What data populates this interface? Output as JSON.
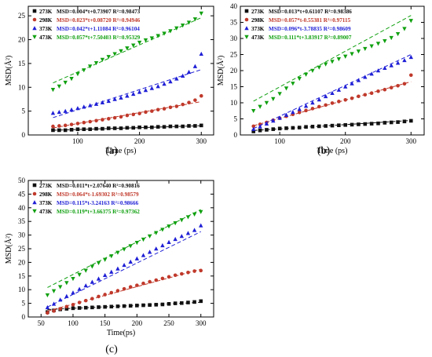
{
  "figure": {
    "colors": {
      "273K": "#111111",
      "298K": "#c0392b",
      "373K": "#1f1fd6",
      "473K": "#10a010"
    },
    "panels": [
      {
        "panel_label": "(a)",
        "xlabel": "Time (ps)",
        "ylabel": "MSD(Å²)"
      },
      {
        "panel_label": "(b)",
        "xlabel": "Time (ps)",
        "ylabel": "MSD(Å²)"
      },
      {
        "panel_label": "(c)",
        "xlabel": "Time(ps)",
        "ylabel": "MSD(Å²)"
      }
    ]
  },
  "chart_data": [
    {
      "type": "scatter",
      "title": "(a)",
      "xlabel": "Time (ps)",
      "ylabel": "MSD(Å²)",
      "xlim": [
        20,
        320
      ],
      "ylim": [
        0,
        27
      ],
      "xticks": [
        100,
        200,
        300
      ],
      "yticks": [
        0,
        5,
        10,
        15,
        20,
        25
      ],
      "grid": false,
      "legend_position": "top-left",
      "series": [
        {
          "name": "273K",
          "fit": "MSD=0.004*t+0.73907 R²=0.98473",
          "slope": 0.004,
          "intercept": 0.73907,
          "color": "#111111",
          "marker": "square",
          "x": [
            60,
            70,
            80,
            90,
            100,
            110,
            120,
            130,
            140,
            150,
            160,
            170,
            180,
            190,
            200,
            210,
            220,
            230,
            240,
            250,
            260,
            270,
            280,
            290,
            300
          ],
          "y": [
            1.0,
            1.0,
            1.0,
            1.1,
            1.2,
            1.2,
            1.2,
            1.3,
            1.3,
            1.4,
            1.4,
            1.4,
            1.5,
            1.5,
            1.6,
            1.6,
            1.6,
            1.7,
            1.7,
            1.8,
            1.8,
            1.8,
            1.9,
            1.9,
            2.0
          ]
        },
        {
          "name": "298K",
          "fit": "MSD=0.023*t+0.08720 R²=0.94946",
          "slope": 0.023,
          "intercept": 0.0872,
          "color": "#c0392b",
          "marker": "circle",
          "x": [
            60,
            70,
            80,
            90,
            100,
            110,
            120,
            130,
            140,
            150,
            160,
            170,
            180,
            190,
            200,
            210,
            220,
            230,
            240,
            250,
            260,
            270,
            280,
            290,
            300
          ],
          "y": [
            1.8,
            1.9,
            2.0,
            2.2,
            2.4,
            2.6,
            2.8,
            3.0,
            3.2,
            3.4,
            3.6,
            3.8,
            4.1,
            4.3,
            4.5,
            4.8,
            5.0,
            5.3,
            5.5,
            5.8,
            6.0,
            6.4,
            6.8,
            7.3,
            8.2
          ]
        },
        {
          "name": "373K",
          "fit": "MSD=0.042*t+1.11084 R²=0.96104",
          "slope": 0.042,
          "intercept": 1.11084,
          "color": "#1f1fd6",
          "marker": "triangle",
          "x": [
            60,
            70,
            80,
            90,
            100,
            110,
            120,
            130,
            140,
            150,
            160,
            170,
            180,
            190,
            200,
            210,
            220,
            230,
            240,
            250,
            260,
            270,
            280,
            290,
            300
          ],
          "y": [
            4.6,
            4.8,
            5.0,
            5.3,
            5.6,
            5.9,
            6.2,
            6.5,
            6.8,
            7.1,
            7.5,
            7.8,
            8.2,
            8.6,
            9.0,
            9.4,
            9.8,
            10.2,
            10.7,
            11.2,
            11.8,
            12.4,
            13.2,
            14.4,
            17.0
          ]
        },
        {
          "name": "473K",
          "fit": "MSD=0.057*t+7.50403 R²=0.95329",
          "slope": 0.057,
          "intercept": 7.50403,
          "color": "#10a010",
          "marker": "inv-triangle",
          "x": [
            60,
            70,
            80,
            90,
            100,
            110,
            120,
            130,
            140,
            150,
            160,
            170,
            180,
            190,
            200,
            210,
            220,
            230,
            240,
            250,
            260,
            270,
            280,
            290,
            300
          ],
          "y": [
            9.5,
            10.2,
            11.0,
            11.8,
            12.8,
            13.6,
            14.4,
            15.1,
            15.8,
            16.4,
            17.0,
            17.6,
            18.2,
            18.8,
            19.4,
            19.9,
            20.3,
            20.8,
            21.3,
            21.8,
            22.4,
            23.0,
            23.6,
            24.3,
            25.5
          ]
        }
      ]
    },
    {
      "type": "scatter",
      "title": "(b)",
      "xlabel": "Time (ps)",
      "ylabel": "MSD(Å²)",
      "xlim": [
        40,
        320
      ],
      "ylim": [
        0,
        40
      ],
      "xticks": [
        100,
        200,
        300
      ],
      "yticks": [
        0,
        5,
        10,
        15,
        20,
        25,
        30,
        35,
        40
      ],
      "grid": false,
      "legend_position": "top-left",
      "series": [
        {
          "name": "273K",
          "fit": "MSD=0.013*t+0.61107 R²=0.98386",
          "slope": 0.013,
          "intercept": 0.61107,
          "color": "#111111",
          "marker": "square",
          "x": [
            60,
            70,
            80,
            90,
            100,
            110,
            120,
            130,
            140,
            150,
            160,
            170,
            180,
            190,
            200,
            210,
            220,
            230,
            240,
            250,
            260,
            270,
            280,
            290,
            300
          ],
          "y": [
            1.1,
            1.4,
            1.6,
            1.8,
            2.0,
            2.1,
            2.2,
            2.3,
            2.5,
            2.6,
            2.7,
            2.8,
            2.9,
            3.0,
            3.1,
            3.2,
            3.3,
            3.4,
            3.5,
            3.6,
            3.8,
            3.9,
            4.0,
            4.2,
            4.4
          ]
        },
        {
          "name": "298K",
          "fit": "MSD=0.057*t-0.55381 R²=0.97115",
          "slope": 0.057,
          "intercept": -0.55381,
          "color": "#c0392b",
          "marker": "circle",
          "x": [
            60,
            70,
            80,
            90,
            100,
            110,
            120,
            130,
            140,
            150,
            160,
            170,
            180,
            190,
            200,
            210,
            220,
            230,
            240,
            250,
            260,
            270,
            280,
            290,
            300
          ],
          "y": [
            2.7,
            3.3,
            3.9,
            4.6,
            5.2,
            5.8,
            6.4,
            7.0,
            7.6,
            8.2,
            8.8,
            9.3,
            9.9,
            10.4,
            10.9,
            11.4,
            12.0,
            12.5,
            13.0,
            13.6,
            14.1,
            14.7,
            15.3,
            15.9,
            18.6
          ]
        },
        {
          "name": "373K",
          "fit": "MSD=0.096*t-3.78835 R²=0.98609",
          "slope": 0.096,
          "intercept": -3.78835,
          "color": "#1f1fd6",
          "marker": "triangle",
          "x": [
            60,
            70,
            80,
            90,
            100,
            110,
            120,
            130,
            140,
            150,
            160,
            170,
            180,
            190,
            200,
            210,
            220,
            230,
            240,
            250,
            260,
            270,
            280,
            290,
            300
          ],
          "y": [
            1.8,
            2.6,
            3.5,
            4.4,
            5.3,
            6.2,
            7.1,
            8.0,
            9.0,
            10.0,
            11.0,
            12.0,
            13.0,
            14.0,
            15.0,
            16.0,
            17.0,
            18.0,
            19.0,
            20.0,
            20.8,
            21.6,
            22.4,
            23.2,
            24.2
          ]
        },
        {
          "name": "473K",
          "fit": "MSD=0.111*t+3.83917 R²=0.89007",
          "slope": 0.111,
          "intercept": 3.83917,
          "color": "#10a010",
          "marker": "inv-triangle",
          "x": [
            60,
            70,
            80,
            90,
            100,
            110,
            120,
            130,
            140,
            150,
            160,
            170,
            180,
            190,
            200,
            210,
            220,
            230,
            240,
            250,
            260,
            270,
            280,
            290,
            300
          ],
          "y": [
            7.5,
            8.8,
            10.0,
            11.2,
            12.8,
            14.5,
            16.0,
            17.5,
            18.8,
            20.0,
            21.0,
            22.0,
            22.8,
            23.6,
            24.4,
            25.2,
            26.0,
            26.8,
            27.6,
            28.4,
            29.2,
            30.2,
            31.4,
            33.0,
            35.5
          ]
        }
      ]
    },
    {
      "type": "scatter",
      "title": "(c)",
      "xlabel": "Time(ps)",
      "ylabel": "MSD(Å²)",
      "xlim": [
        30,
        320
      ],
      "ylim": [
        0,
        50
      ],
      "xticks": [
        50,
        100,
        150,
        200,
        250,
        300
      ],
      "yticks": [
        0,
        5,
        10,
        15,
        20,
        25,
        30,
        35,
        40,
        45,
        50
      ],
      "grid": false,
      "legend_position": "top-left",
      "series": [
        {
          "name": "273K",
          "fit": "MSD=0.011*t+2.07640 R²=0.90816",
          "slope": 0.011,
          "intercept": 2.0764,
          "color": "#111111",
          "marker": "square",
          "x": [
            60,
            70,
            80,
            90,
            100,
            110,
            120,
            130,
            140,
            150,
            160,
            170,
            180,
            190,
            200,
            210,
            220,
            230,
            240,
            250,
            260,
            270,
            280,
            290,
            300
          ],
          "y": [
            1.8,
            2.4,
            2.8,
            3.0,
            3.2,
            3.3,
            3.4,
            3.5,
            3.6,
            3.7,
            3.8,
            3.9,
            4.0,
            4.1,
            4.2,
            4.3,
            4.4,
            4.5,
            4.6,
            4.8,
            5.0,
            5.1,
            5.3,
            5.5,
            5.8
          ]
        },
        {
          "name": "298K",
          "fit": "MSD=0.064*t-1.69302 R²=0.98579",
          "slope": 0.064,
          "intercept": -1.69302,
          "color": "#c0392b",
          "marker": "circle",
          "x": [
            60,
            70,
            80,
            90,
            100,
            110,
            120,
            130,
            140,
            150,
            160,
            170,
            180,
            190,
            200,
            210,
            220,
            230,
            240,
            250,
            260,
            270,
            280,
            290,
            300
          ],
          "y": [
            1.5,
            2.2,
            3.0,
            3.8,
            4.5,
            5.3,
            6.0,
            6.7,
            7.5,
            8.2,
            8.9,
            9.6,
            10.3,
            11.0,
            11.6,
            12.3,
            12.9,
            13.5,
            14.1,
            14.7,
            15.3,
            15.8,
            16.3,
            16.8,
            17.0
          ]
        },
        {
          "name": "373K",
          "fit": "MSD=0.115*t-3.24163 R²=0.98666",
          "slope": 0.115,
          "intercept": -3.24163,
          "color": "#1f1fd6",
          "marker": "triangle",
          "x": [
            60,
            70,
            80,
            90,
            100,
            110,
            120,
            130,
            140,
            150,
            160,
            170,
            180,
            190,
            200,
            210,
            220,
            230,
            240,
            250,
            260,
            270,
            280,
            290,
            300
          ],
          "y": [
            3.5,
            4.8,
            6.3,
            7.6,
            8.9,
            10.2,
            11.5,
            12.8,
            14.0,
            15.3,
            16.5,
            17.7,
            19.0,
            20.2,
            21.4,
            22.6,
            23.8,
            25.0,
            26.2,
            27.4,
            28.5,
            29.6,
            30.7,
            31.8,
            33.5
          ]
        },
        {
          "name": "473K",
          "fit": "MSD=0.119*t+3.66375 R²=0.97362",
          "slope": 0.119,
          "intercept": 3.66375,
          "color": "#10a010",
          "marker": "inv-triangle",
          "x": [
            60,
            70,
            80,
            90,
            100,
            110,
            120,
            130,
            140,
            150,
            160,
            170,
            180,
            190,
            200,
            210,
            220,
            230,
            240,
            250,
            260,
            270,
            280,
            290,
            300
          ],
          "y": [
            8.0,
            9.5,
            11.0,
            12.5,
            14.0,
            15.5,
            17.0,
            18.5,
            19.8,
            21.0,
            22.3,
            23.6,
            24.8,
            26.0,
            27.2,
            28.4,
            29.6,
            30.8,
            32.0,
            33.2,
            34.4,
            35.5,
            36.6,
            37.6,
            38.5
          ]
        }
      ]
    }
  ]
}
